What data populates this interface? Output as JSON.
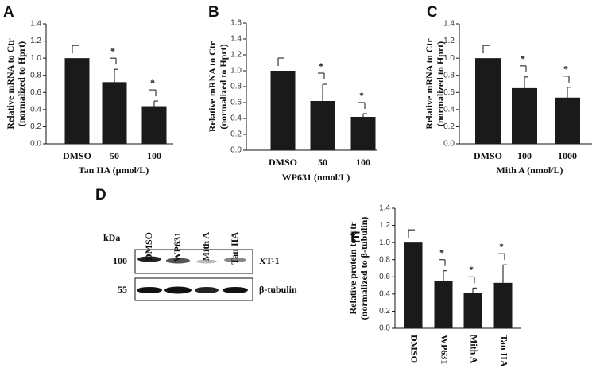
{
  "chart_data": [
    {
      "type": "bar",
      "panel": "A",
      "y_label": [
        "Relative mRNA to Ctr",
        "(normalized to Hprt)"
      ],
      "x_label": "Tan IIA (µmol/L)",
      "categories": [
        "DMSO",
        "50",
        "100"
      ],
      "values": [
        1.0,
        0.72,
        0.44
      ],
      "errors": [
        0,
        0.15,
        0.06
      ],
      "significance": [
        null,
        "*",
        "*"
      ],
      "color": "#1a1a1a",
      "ylim": [
        0,
        1.4
      ],
      "yticks": [
        {
          "value": 0,
          "label": "0.0"
        },
        {
          "value": 0.2,
          "label": "0.2"
        },
        {
          "value": 0.4,
          "label": "0.4"
        },
        {
          "value": 0.6,
          "label": "0.6"
        },
        {
          "value": 0.8,
          "label": "0.8"
        },
        {
          "value": 1,
          "label": "1.0"
        },
        {
          "value": 1.2,
          "label": "1.2"
        },
        {
          "value": 1.4,
          "label": "1.4"
        }
      ]
    },
    {
      "type": "bar",
      "panel": "B",
      "y_label": [
        "Relative mRNA to Ctr",
        "(normalized to Hprt)"
      ],
      "x_label": "WP631 (nmol/L)",
      "categories": [
        "DMSO",
        "50",
        "100"
      ],
      "values": [
        1.0,
        0.62,
        0.42
      ],
      "errors": [
        0,
        0.21,
        0.04
      ],
      "significance": [
        null,
        "*",
        "*"
      ],
      "color": "#1a1a1a",
      "ylim": [
        0,
        1.6
      ],
      "yticks": [
        {
          "value": 0,
          "label": "0.0"
        },
        {
          "value": 0.2,
          "label": "0.2"
        },
        {
          "value": 0.4,
          "label": "0.4"
        },
        {
          "value": 0.6,
          "label": "0.6"
        },
        {
          "value": 0.8,
          "label": "0.8"
        },
        {
          "value": 1,
          "label": "1.0"
        },
        {
          "value": 1.2,
          "label": "1.2"
        },
        {
          "value": 1.4,
          "label": "1.4"
        },
        {
          "value": 1.6,
          "label": "1.6"
        }
      ]
    },
    {
      "type": "bar",
      "panel": "C",
      "y_label": [
        "Relative mRNA to Ctr",
        "(normalized to Hprt)"
      ],
      "x_label": "Mith A (nmol/L)",
      "categories": [
        "DMSO",
        "100",
        "1000"
      ],
      "values": [
        1.0,
        0.65,
        0.54
      ],
      "errors": [
        0,
        0.13,
        0.12
      ],
      "significance": [
        null,
        "*",
        "*"
      ],
      "color": "#1a1a1a",
      "ylim": [
        0,
        1.4
      ],
      "yticks": [
        {
          "value": 0,
          "label": "0.0"
        },
        {
          "value": 0.2,
          "label": "0.2"
        },
        {
          "value": 0.4,
          "label": "0.4"
        },
        {
          "value": 0.6,
          "label": "0.6"
        },
        {
          "value": 0.8,
          "label": "0.8"
        },
        {
          "value": 1,
          "label": "1.0"
        },
        {
          "value": 1.2,
          "label": "1.2"
        },
        {
          "value": 1.4,
          "label": "1.4"
        }
      ]
    },
    {
      "type": "bar",
      "panel": "E",
      "y_label": [
        "Relative protein to Ctr",
        "(normalized to β-tubulin)"
      ],
      "categories": [
        "DMSO",
        "WP631",
        "Mith A",
        "Tan IIA"
      ],
      "values": [
        1.0,
        0.55,
        0.41,
        0.53
      ],
      "errors": [
        0,
        0.12,
        0.06,
        0.21
      ],
      "significance": [
        null,
        "*",
        "*",
        "*"
      ],
      "color": "#1a1a1a",
      "ylim": [
        0,
        1.4
      ],
      "rotate_categories": true,
      "yticks": [
        {
          "value": 0,
          "label": "0.0"
        },
        {
          "value": 0.2,
          "label": "0.2"
        },
        {
          "value": 0.4,
          "label": "0.4"
        },
        {
          "value": 0.6,
          "label": "0.6"
        },
        {
          "value": 0.8,
          "label": "0.8"
        },
        {
          "value": 1,
          "label": "1.0"
        },
        {
          "value": 1.2,
          "label": "1.2"
        },
        {
          "value": 1.4,
          "label": "1.4"
        }
      ]
    }
  ],
  "blot": {
    "panel": "D",
    "kda_label": "kDa",
    "lanes": [
      "DMSO",
      "WP631",
      "Mith A",
      "Tan IIA"
    ],
    "rows": [
      {
        "marker": 100,
        "label": "XT-1"
      },
      {
        "marker": 55,
        "label": "β-tubulin"
      }
    ]
  }
}
